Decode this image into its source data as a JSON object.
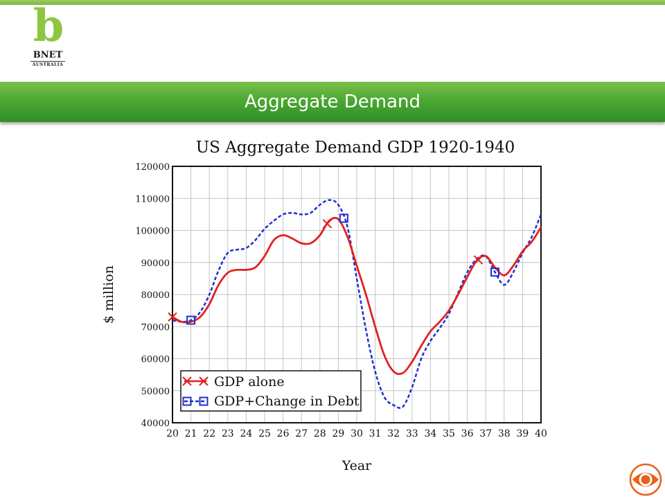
{
  "header": {
    "logo_letter": "b",
    "logo_name": "BNET",
    "logo_subtitle": "AUSTRALIA",
    "title": "Aggregate Demand"
  },
  "colors": {
    "accent_green": "#8dc63f",
    "banner_green": "#4ca833",
    "gdp_series": "#e02020",
    "debt_series": "#1f2fd0",
    "cbs_orange": "#e8601c"
  },
  "corner_icon": "cbs-eye-icon",
  "chart_data": {
    "type": "line",
    "title": "US Aggregate Demand GDP 1920-1940",
    "xlabel": "Year",
    "ylabel": "$ million",
    "xlim": [
      20,
      40
    ],
    "ylim": [
      40000,
      120000
    ],
    "x_ticks": [
      20,
      21,
      22,
      23,
      24,
      25,
      26,
      27,
      28,
      29,
      30,
      31,
      32,
      33,
      34,
      35,
      36,
      37,
      38,
      39,
      40
    ],
    "y_ticks": [
      40000,
      50000,
      60000,
      70000,
      80000,
      90000,
      100000,
      110000,
      120000
    ],
    "grid": true,
    "legend_position": "bottom-left",
    "series": [
      {
        "name": "GDP alone",
        "color": "#e02020",
        "style": "solid",
        "marker": "x",
        "marker_x": [
          20,
          28.4,
          36.6
        ],
        "x": [
          20,
          20.5,
          21,
          21.5,
          22,
          22.5,
          23,
          23.5,
          24,
          24.5,
          25,
          25.5,
          26,
          26.5,
          27,
          27.5,
          28,
          28.5,
          29,
          29.5,
          30,
          30.5,
          31,
          31.5,
          32,
          32.5,
          33,
          33.5,
          34,
          34.5,
          35,
          35.5,
          36,
          36.5,
          37,
          37.5,
          38,
          38.5,
          39,
          39.5,
          40
        ],
        "y": [
          73000,
          71500,
          71500,
          73000,
          77000,
          83000,
          86800,
          87700,
          87700,
          88500,
          92000,
          97000,
          98500,
          97500,
          96000,
          96000,
          98500,
          103000,
          103500,
          98000,
          89000,
          80000,
          70000,
          61000,
          56000,
          55500,
          59000,
          64000,
          68500,
          71500,
          75000,
          80000,
          85500,
          90500,
          92000,
          88500,
          86000,
          89000,
          93500,
          96500,
          101000
        ]
      },
      {
        "name": "GDP+Change in Debt",
        "color": "#1f2fd0",
        "style": "dashed",
        "marker": "square",
        "marker_x": [
          21,
          29.3,
          37.5
        ],
        "x": [
          20,
          20.5,
          21,
          21.5,
          22,
          22.5,
          23,
          23.5,
          24,
          24.5,
          25,
          25.5,
          26,
          26.5,
          27,
          27.5,
          28,
          28.5,
          29,
          29.5,
          30,
          30.5,
          31,
          31.5,
          32,
          32.5,
          33,
          33.5,
          34,
          34.5,
          35,
          35.5,
          36,
          36.5,
          37,
          37.5,
          38,
          38.5,
          39,
          39.5,
          40
        ],
        "y": [
          72000,
          71500,
          72000,
          74500,
          80000,
          87500,
          93000,
          94000,
          94500,
          97000,
          100500,
          103000,
          105000,
          105500,
          105000,
          105500,
          108000,
          109500,
          108000,
          101000,
          85000,
          69000,
          56000,
          48000,
          45500,
          45000,
          51000,
          60000,
          65500,
          69500,
          74000,
          80500,
          87000,
          91000,
          92000,
          87000,
          83000,
          87000,
          93000,
          98000,
          105000
        ]
      }
    ]
  }
}
